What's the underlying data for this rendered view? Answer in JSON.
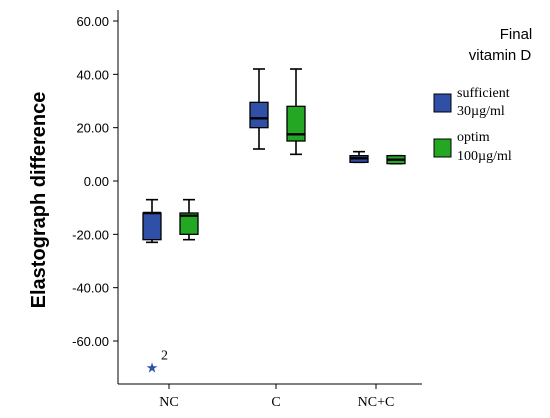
{
  "chart_data": {
    "type": "boxplot",
    "ylabel": "Elastograph difference",
    "ylim": [
      -75,
      63
    ],
    "yticks": [
      -60,
      -40,
      -20,
      0,
      20,
      40,
      60
    ],
    "ytick_labels": [
      "-60.00",
      "-40.00",
      "-20.00",
      "0.00",
      "20.00",
      "40.00",
      "60.00"
    ],
    "categories": [
      "NC",
      "C",
      "NC+C"
    ],
    "legend": {
      "title_line1": "Final",
      "title_line2": "vitamin D",
      "position": "right",
      "entries": [
        {
          "line1": "sufficient",
          "line2": "30µg/ml",
          "color": "#3050a8"
        },
        {
          "line1": "optim",
          "line2": "100µg/ml",
          "color": "#24a824"
        }
      ]
    },
    "series": [
      {
        "name": "sufficient 30µg/ml",
        "color": "#3050a8",
        "boxes": [
          {
            "whisker_low": -23,
            "q1": -22,
            "median": -12,
            "q3": -12,
            "whisker_high": -7
          },
          {
            "whisker_low": 12,
            "q1": 20,
            "median": 23.5,
            "q3": 29.5,
            "whisker_high": 42
          },
          {
            "whisker_low": 7,
            "q1": 7,
            "median": 8.5,
            "q3": 9.5,
            "whisker_high": 11
          }
        ]
      },
      {
        "name": "optim 100µg/ml",
        "color": "#24a824",
        "boxes": [
          {
            "whisker_low": -22,
            "q1": -20,
            "median": -13,
            "q3": -12,
            "whisker_high": -7
          },
          {
            "whisker_low": 10,
            "q1": 15,
            "median": 17.5,
            "q3": 28,
            "whisker_high": 42
          },
          {
            "whisker_low": 6.5,
            "q1": 6.5,
            "median": 8,
            "q3": 9.5,
            "whisker_high": 9.5
          }
        ]
      }
    ],
    "outliers": [
      {
        "category": "NC",
        "series": 0,
        "value": -70,
        "label": "2",
        "marker": "star"
      }
    ]
  }
}
